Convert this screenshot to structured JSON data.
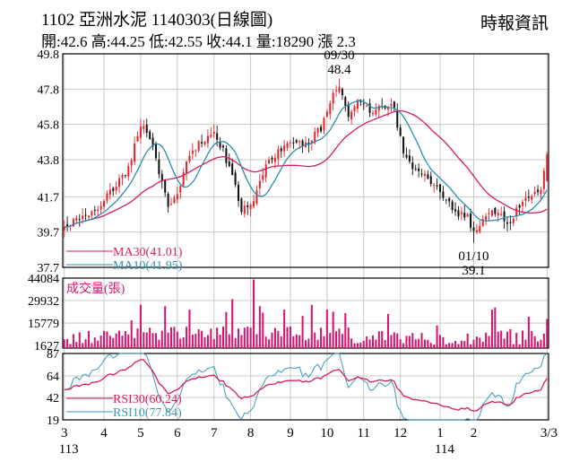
{
  "header": {
    "title": "1102  亞洲水泥 1140303(日線圖)",
    "source": "時報資訊",
    "ohlc": "開:42.6 高:44.25 低:42.55 收:44.1 量:18290 漲 2.3"
  },
  "colors": {
    "up": "#e8252e",
    "down": "#111111",
    "ma30": "#d81b60",
    "ma10": "#2a8fb0",
    "volume": "#d6156e",
    "rsi30": "#d81b60",
    "rsi10": "#3a9ab8",
    "grid": "#c8c8c8"
  },
  "chart_data": [
    {
      "type": "candlestick",
      "ylim": [
        37.7,
        49.8
      ],
      "yticks": [
        "49.8",
        "47.8",
        "45.8",
        "43.8",
        "41.7",
        "39.7",
        "37.7"
      ],
      "ytick_values": [
        49.8,
        47.8,
        45.8,
        43.8,
        41.7,
        39.7,
        37.7
      ],
      "annotations": [
        {
          "date": "09/30",
          "value": "48.4"
        },
        {
          "date": "01/10",
          "value": "39.1"
        }
      ],
      "legend": [
        "MA30(41.01)",
        "MA10(41.95)"
      ],
      "price_anchors": [
        {
          "x": 0,
          "v": 40.0
        },
        {
          "x": 4,
          "v": 40.3
        },
        {
          "x": 9,
          "v": 40.9
        },
        {
          "x": 13,
          "v": 41.5
        },
        {
          "x": 17,
          "v": 42.3
        },
        {
          "x": 21,
          "v": 43.3
        },
        {
          "x": 25,
          "v": 45.9
        },
        {
          "x": 28,
          "v": 45.0
        },
        {
          "x": 31,
          "v": 43.0
        },
        {
          "x": 34,
          "v": 41.2
        },
        {
          "x": 37,
          "v": 41.8
        },
        {
          "x": 40,
          "v": 43.6
        },
        {
          "x": 43,
          "v": 44.5
        },
        {
          "x": 46,
          "v": 44.9
        },
        {
          "x": 49,
          "v": 45.2
        },
        {
          "x": 52,
          "v": 44.3
        },
        {
          "x": 55,
          "v": 42.8
        },
        {
          "x": 58,
          "v": 41.0
        },
        {
          "x": 61,
          "v": 41.1
        },
        {
          "x": 64,
          "v": 42.8
        },
        {
          "x": 67,
          "v": 43.6
        },
        {
          "x": 71,
          "v": 44.4
        },
        {
          "x": 75,
          "v": 44.9
        },
        {
          "x": 79,
          "v": 44.6
        },
        {
          "x": 84,
          "v": 45.6
        },
        {
          "x": 88,
          "v": 47.6
        },
        {
          "x": 90,
          "v": 47.8
        },
        {
          "x": 93,
          "v": 46.3
        },
        {
          "x": 97,
          "v": 47.2
        },
        {
          "x": 100,
          "v": 46.4
        },
        {
          "x": 104,
          "v": 46.9
        },
        {
          "x": 108,
          "v": 46.7
        },
        {
          "x": 111,
          "v": 44.1
        },
        {
          "x": 114,
          "v": 43.3
        },
        {
          "x": 117,
          "v": 43.0
        },
        {
          "x": 120,
          "v": 42.5
        },
        {
          "x": 124,
          "v": 41.7
        },
        {
          "x": 128,
          "v": 40.9
        },
        {
          "x": 132,
          "v": 40.5
        },
        {
          "x": 134,
          "v": 39.6
        },
        {
          "x": 137,
          "v": 40.6
        },
        {
          "x": 140,
          "v": 41.1
        },
        {
          "x": 143,
          "v": 40.6
        },
        {
          "x": 146,
          "v": 40.2
        },
        {
          "x": 148,
          "v": 40.9
        },
        {
          "x": 151,
          "v": 41.5
        },
        {
          "x": 154,
          "v": 41.8
        },
        {
          "x": 156,
          "v": 42.2
        },
        {
          "x": 158,
          "v": 44.1
        }
      ]
    },
    {
      "type": "bar",
      "series_name": "成交量(張)",
      "ylim": [
        0,
        44084
      ],
      "yticks": [
        "44084",
        "29932",
        "15779",
        "1627"
      ],
      "ytick_values": [
        44084,
        29932,
        15779,
        1627
      ],
      "last_value": 18290
    },
    {
      "type": "line",
      "ylim": [
        19,
        87
      ],
      "yticks": [
        "87",
        "64",
        "42",
        "19"
      ],
      "ytick_values": [
        87,
        64,
        42,
        19
      ],
      "legend": [
        "RSI30(60.24)",
        "RSI10(77.84)"
      ]
    }
  ],
  "x_axis": {
    "months": [
      {
        "label": "3",
        "i": 0
      },
      {
        "label": "4",
        "i": 13
      },
      {
        "label": "5",
        "i": 25
      },
      {
        "label": "6",
        "i": 37
      },
      {
        "label": "7",
        "i": 49
      },
      {
        "label": "8",
        "i": 61
      },
      {
        "label": "9",
        "i": 74
      },
      {
        "label": "10",
        "i": 86
      },
      {
        "label": "11",
        "i": 98
      },
      {
        "label": "12",
        "i": 110
      },
      {
        "label": "1",
        "i": 123
      },
      {
        "label": "2",
        "i": 134
      },
      {
        "label": "3/3",
        "i": 158
      }
    ],
    "years": [
      {
        "label": "113",
        "i": 0
      },
      {
        "label": "114",
        "i": 123
      }
    ]
  }
}
